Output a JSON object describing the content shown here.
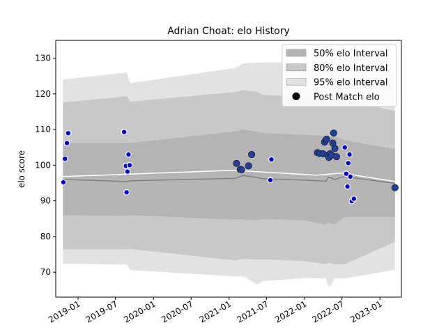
{
  "chart_data": {
    "type": "line",
    "title": "Adrian Choat: elo History",
    "xlabel": "",
    "ylabel": "elo score",
    "ylim": [
      63,
      135
    ],
    "xlim": [
      "2018-09-15",
      "2023-04-15"
    ],
    "x_ticks": [
      "2019-01",
      "2019-07",
      "2020-01",
      "2020-07",
      "2021-01",
      "2021-07",
      "2022-01",
      "2022-07",
      "2023-01"
    ],
    "y_ticks": [
      70,
      80,
      90,
      100,
      110,
      120,
      130
    ],
    "legend_position": "top-right",
    "grid": false,
    "colors": {
      "band95": "#e2e2e2",
      "band80": "#c8c8c8",
      "band50": "#b4b4b4",
      "mean_line": "#ffffff",
      "median_line": "#808080",
      "point_fill": "#0000dd",
      "point_fill_recent": "#2a3f8f",
      "point_edge": "#ffffff",
      "point_edge_recent": "#1a2a5a"
    },
    "legend": [
      {
        "label": "50% elo Interval",
        "kind": "band50"
      },
      {
        "label": "80% elo Interval",
        "kind": "band80"
      },
      {
        "label": "95% elo Interval",
        "kind": "band95"
      },
      {
        "label": "Post Match elo",
        "kind": "point"
      }
    ],
    "bands": {
      "dates": [
        "2018-10-20",
        "2019-08-25",
        "2019-09-10",
        "2021-02-01",
        "2021-03-10",
        "2021-05-20",
        "2021-06-15",
        "2022-01-01",
        "2022-04-15",
        "2022-04-25",
        "2022-05-10",
        "2022-05-25",
        "2022-06-01",
        "2022-06-20",
        "2022-07-15",
        "2023-03-15"
      ],
      "p95_upper": [
        124,
        126,
        123,
        127.3,
        128.5,
        128.8,
        128.8,
        128.8,
        127.6,
        126.5,
        126.5,
        126.5,
        126.5,
        126.5,
        126.5,
        127.2
      ],
      "p80_upper": [
        117.6,
        119.3,
        117.8,
        120.5,
        121,
        120.5,
        119.7,
        119.2,
        118.5,
        117.5,
        118.8,
        118.6,
        118.6,
        118.6,
        118.5,
        115.2
      ],
      "p50_upper": [
        106.2,
        106.2,
        106.2,
        109.5,
        110,
        109.3,
        109,
        108.5,
        108.2,
        108,
        108,
        108,
        108,
        107.5,
        107,
        104.5
      ],
      "median": [
        96,
        95.4,
        95.6,
        96.3,
        97.1,
        96.5,
        96.2,
        95.8,
        95.5,
        96.5,
        96.5,
        96,
        96,
        96.5,
        96.8,
        94.9
      ],
      "p50_lower": [
        86,
        85.8,
        86,
        84.7,
        84.8,
        84.5,
        84.9,
        84.5,
        83.3,
        84,
        83.5,
        83.5,
        83.5,
        84.5,
        85.5,
        85.5
      ],
      "p80_lower": [
        76.4,
        76.4,
        76.5,
        73.3,
        73.8,
        73.5,
        73.6,
        73.1,
        72.2,
        72.5,
        72.5,
        72.2,
        72.2,
        72.2,
        72.2,
        78.5
      ],
      "p95_lower": [
        72.4,
        72.1,
        70.6,
        68.8,
        68.8,
        66.5,
        67.5,
        68.3,
        68.2,
        66.2,
        66.2,
        68.2,
        68.2,
        68.2,
        68.2,
        70.7
      ]
    },
    "mean_line": {
      "dates": [
        "2018-10-20",
        "2021-02-01",
        "2021-03-15",
        "2022-03-01",
        "2022-07-01",
        "2023-03-15"
      ],
      "values": [
        96.8,
        98.6,
        98.4,
        97.2,
        97.8,
        95.4
      ]
    },
    "points": [
      {
        "date": "2018-10-22",
        "elo": 95.2,
        "group": "early"
      },
      {
        "date": "2018-10-30",
        "elo": 101.8,
        "group": "early"
      },
      {
        "date": "2018-11-08",
        "elo": 106.2,
        "group": "early"
      },
      {
        "date": "2018-11-14",
        "elo": 109.0,
        "group": "early"
      },
      {
        "date": "2019-08-12",
        "elo": 109.3,
        "group": "early"
      },
      {
        "date": "2019-08-20",
        "elo": 99.8,
        "group": "early"
      },
      {
        "date": "2019-08-24",
        "elo": 92.4,
        "group": "early"
      },
      {
        "date": "2019-08-28",
        "elo": 98.2,
        "group": "early"
      },
      {
        "date": "2019-09-02",
        "elo": 103.0,
        "group": "early"
      },
      {
        "date": "2019-09-08",
        "elo": 100.0,
        "group": "early"
      },
      {
        "date": "2021-02-06",
        "elo": 100.5,
        "group": "recent"
      },
      {
        "date": "2021-02-24",
        "elo": 98.8,
        "group": "recent"
      },
      {
        "date": "2021-03-02",
        "elo": 98.7,
        "group": "recent"
      },
      {
        "date": "2021-04-05",
        "elo": 99.8,
        "group": "recent"
      },
      {
        "date": "2021-04-20",
        "elo": 103.0,
        "group": "recent"
      },
      {
        "date": "2021-07-20",
        "elo": 95.8,
        "group": "early"
      },
      {
        "date": "2021-07-25",
        "elo": 101.6,
        "group": "early"
      },
      {
        "date": "2022-03-05",
        "elo": 103.5,
        "group": "recent"
      },
      {
        "date": "2022-03-15",
        "elo": 103.3,
        "group": "recent"
      },
      {
        "date": "2022-04-01",
        "elo": 103.2,
        "group": "recent"
      },
      {
        "date": "2022-04-08",
        "elo": 106.5,
        "group": "recent"
      },
      {
        "date": "2022-04-14",
        "elo": 107.0,
        "group": "recent"
      },
      {
        "date": "2022-04-18",
        "elo": 107.3,
        "group": "recent"
      },
      {
        "date": "2022-04-25",
        "elo": 102.8,
        "group": "recent"
      },
      {
        "date": "2022-04-29",
        "elo": 102.2,
        "group": "recent"
      },
      {
        "date": "2022-05-05",
        "elo": 103.2,
        "group": "recent"
      },
      {
        "date": "2022-05-12",
        "elo": 102.8,
        "group": "recent"
      },
      {
        "date": "2022-05-18",
        "elo": 106.2,
        "group": "recent"
      },
      {
        "date": "2022-05-22",
        "elo": 109.0,
        "group": "recent"
      },
      {
        "date": "2022-05-28",
        "elo": 104.7,
        "group": "recent"
      },
      {
        "date": "2022-06-05",
        "elo": 102.4,
        "group": "recent"
      },
      {
        "date": "2022-07-15",
        "elo": 105.0,
        "group": "early"
      },
      {
        "date": "2022-07-22",
        "elo": 97.6,
        "group": "early"
      },
      {
        "date": "2022-07-28",
        "elo": 94.0,
        "group": "early"
      },
      {
        "date": "2022-08-01",
        "elo": 100.6,
        "group": "early"
      },
      {
        "date": "2022-08-07",
        "elo": 103.0,
        "group": "early"
      },
      {
        "date": "2022-08-11",
        "elo": 96.8,
        "group": "early"
      },
      {
        "date": "2022-08-18",
        "elo": 89.9,
        "group": "early"
      },
      {
        "date": "2022-08-28",
        "elo": 90.6,
        "group": "early"
      },
      {
        "date": "2023-03-15",
        "elo": 93.7,
        "group": "recent"
      }
    ]
  }
}
